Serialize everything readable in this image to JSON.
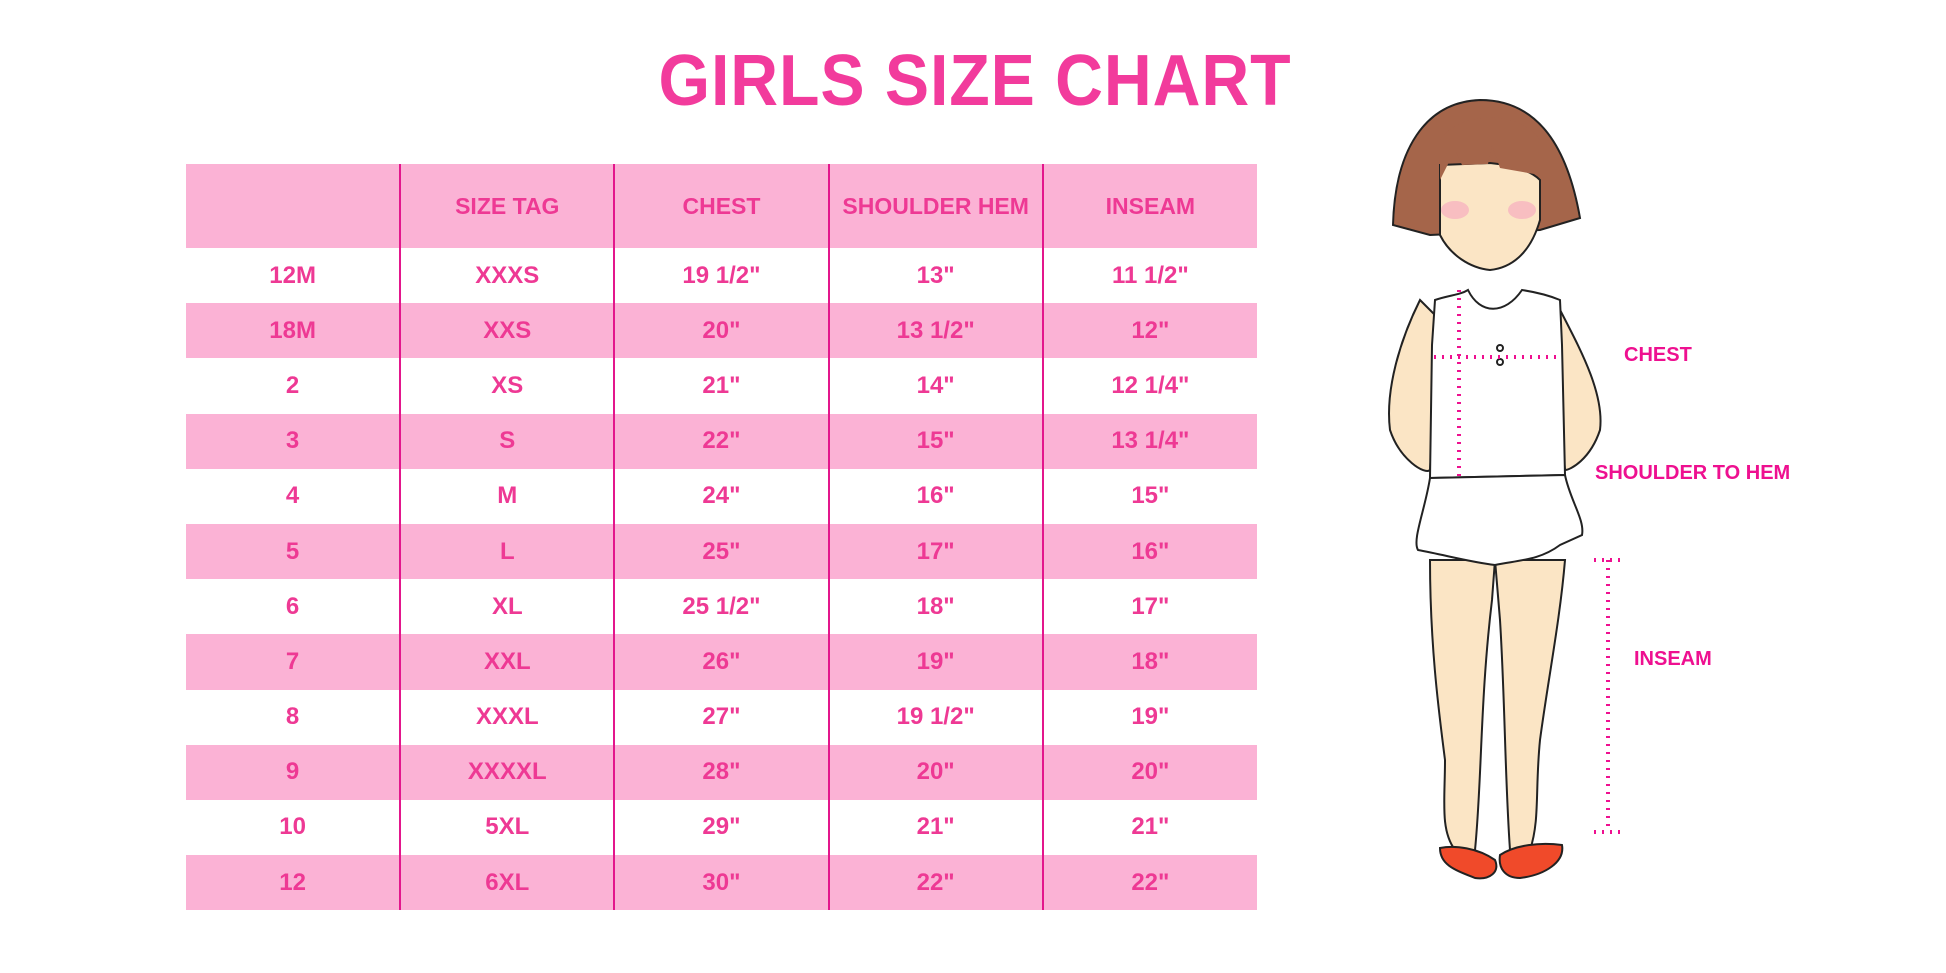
{
  "title": "GIRLS SIZE CHART",
  "colors": {
    "title": "#f23b9c",
    "header_bg": "#fbb2d5",
    "text": "#ee3994",
    "divider": "#e3168c",
    "label": "#ee1090"
  },
  "table": {
    "headers": [
      "",
      "SIZE TAG",
      "CHEST",
      "SHOULDER HEM",
      "INSEAM"
    ],
    "rows": [
      [
        "12M",
        "XXXS",
        "19 1/2\"",
        "13\"",
        "11 1/2\""
      ],
      [
        "18M",
        "XXS",
        "20\"",
        "13 1/2\"",
        "12\""
      ],
      [
        "2",
        "XS",
        "21\"",
        "14\"",
        "12 1/4\""
      ],
      [
        "3",
        "S",
        "22\"",
        "15\"",
        "13 1/4\""
      ],
      [
        "4",
        "M",
        "24\"",
        "16\"",
        "15\""
      ],
      [
        "5",
        "L",
        "25\"",
        "17\"",
        "16\""
      ],
      [
        "6",
        "XL",
        "25 1/2\"",
        "18\"",
        "17\""
      ],
      [
        "7",
        "XXL",
        "26\"",
        "19\"",
        "18\""
      ],
      [
        "8",
        "XXXL",
        "27\"",
        "19 1/2\"",
        "19\""
      ],
      [
        "9",
        "XXXXL",
        "28\"",
        "20\"",
        "20\""
      ],
      [
        "10",
        "5XL",
        "29\"",
        "21\"",
        "21\""
      ],
      [
        "12",
        "6XL",
        "30\"",
        "22\"",
        "22\""
      ]
    ]
  },
  "figure": {
    "labels": {
      "chest": "CHEST",
      "shoulder_to_hem": "SHOULDER TO HEM",
      "inseam": "INSEAM"
    }
  }
}
